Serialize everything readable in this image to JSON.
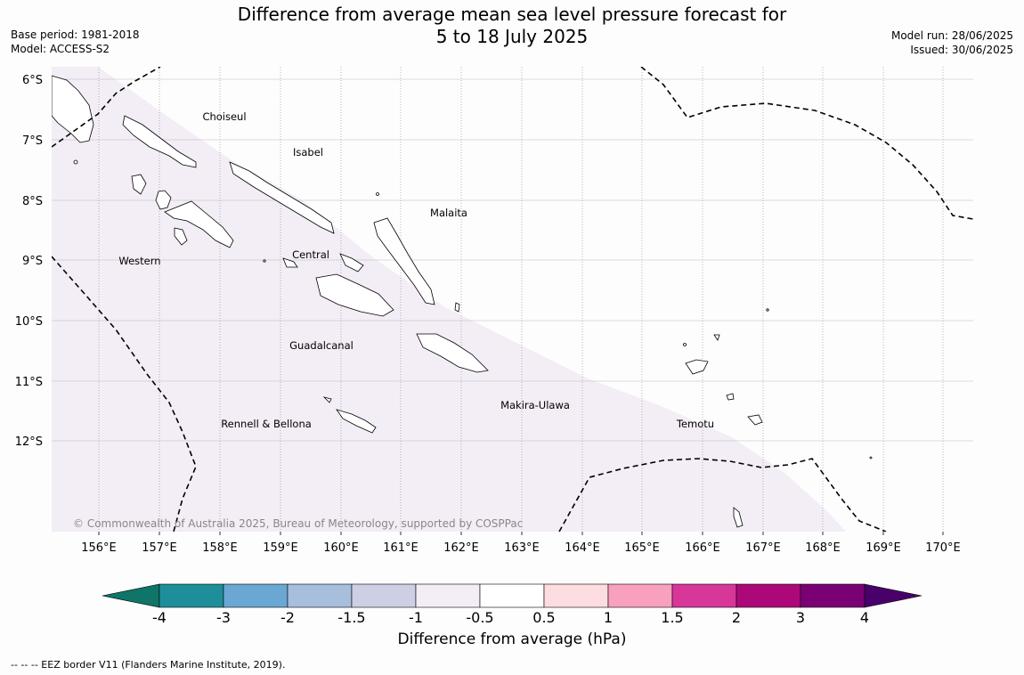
{
  "title": {
    "line1": "Difference from average mean sea level pressure forecast for",
    "line2": "5 to 18 July 2025"
  },
  "meta_left": {
    "base_period": "Base period: 1981-2018",
    "model": "Model: ACCESS-S2"
  },
  "meta_right": {
    "model_run": "Model run: 28/06/2025",
    "issued": "Issued: 30/06/2025"
  },
  "map": {
    "lon_labels": [
      "156°E",
      "157°E",
      "158°E",
      "159°E",
      "160°E",
      "161°E",
      "162°E",
      "163°E",
      "164°E",
      "165°E",
      "166°E",
      "167°E",
      "168°E",
      "169°E",
      "170°E"
    ],
    "lat_labels": [
      "6°S",
      "7°S",
      "8°S",
      "9°S",
      "10°S",
      "11°S",
      "12°S"
    ],
    "region_labels": [
      "Choiseul",
      "Isabel",
      "Malaita",
      "Western",
      "Central",
      "Guadalcanal",
      "Makira-Ulawa",
      "Rennell & Bellona",
      "Temotu"
    ],
    "copyright": "© Commonwealth of Australia 2025, Bureau of Meteorology, supported by COSPPac",
    "colors": {
      "band_-1_-0.5": "#f3edf6",
      "eez_line": "#000000"
    }
  },
  "colorbar": {
    "colors": [
      "#0e7568",
      "#1e8f9a",
      "#6aa8d3",
      "#a8bedd",
      "#cdd0e4",
      "#f3edf6",
      "#ffffff",
      "#fddde0",
      "#f8a0be",
      "#d8379a",
      "#ac0879",
      "#7a0174",
      "#49006a"
    ],
    "tick_labels": [
      "-4",
      "-3",
      "-2",
      "-1.5",
      "-1",
      "-0.5",
      "0.5",
      "1",
      "1.5",
      "2",
      "3",
      "4"
    ],
    "label": "Difference from average (hPa)"
  },
  "footer": "--  --  -- EEZ border V11 (Flanders Marine Institute, 2019)."
}
